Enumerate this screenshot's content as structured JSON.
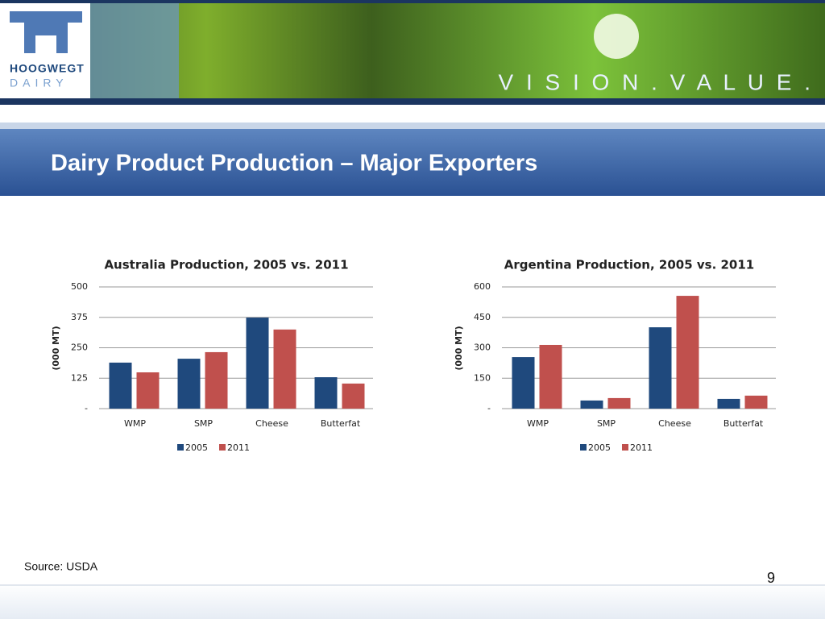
{
  "logo": {
    "name": "HOOGWEGT",
    "sub": "DAIRY"
  },
  "slogan": "V I S I O N . V A L U E .",
  "title": "Dairy Product Production – Major Exporters",
  "source": "Source: USDA",
  "page_number": "9",
  "chart_data": [
    {
      "type": "bar",
      "title": "Australia Production, 2005 vs. 2011",
      "y_label": "(000 MT)",
      "categories": [
        "WMP",
        "SMP",
        "Cheese",
        "Butterfat"
      ],
      "series": [
        {
          "name": "2005",
          "color": "#1f497d",
          "values": [
            189,
            205,
            374,
            129
          ]
        },
        {
          "name": "2011",
          "color": "#c0504d",
          "values": [
            149,
            232,
            325,
            103
          ]
        }
      ],
      "ylim": [
        0,
        500
      ],
      "yticks": [
        {
          "value": 0,
          "label": "-"
        },
        125,
        250,
        375,
        500
      ],
      "grid": true,
      "legend": "bottom"
    },
    {
      "type": "bar",
      "title": "Argentina Production, 2005 vs. 2011",
      "y_label": "(000 MT)",
      "categories": [
        "WMP",
        "SMP",
        "Cheese",
        "Butterfat"
      ],
      "series": [
        {
          "name": "2005",
          "color": "#1f497d",
          "values": [
            254,
            40,
            401,
            48
          ]
        },
        {
          "name": "2011",
          "color": "#c0504d",
          "values": [
            314,
            52,
            556,
            64
          ]
        }
      ],
      "ylim": [
        0,
        600
      ],
      "yticks": [
        {
          "value": 0,
          "label": "-"
        },
        150,
        300,
        450,
        600
      ],
      "grid": true,
      "legend": "bottom"
    }
  ]
}
